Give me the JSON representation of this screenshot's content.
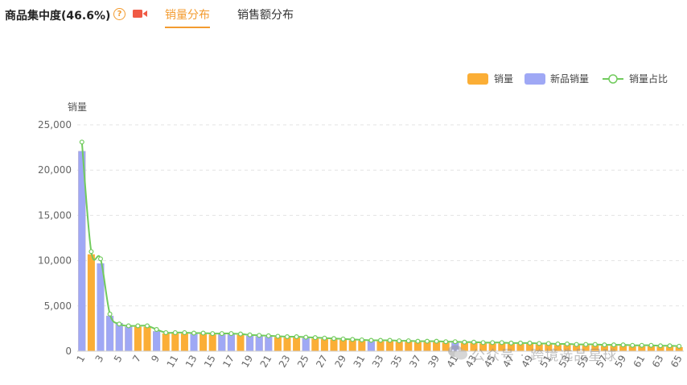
{
  "header": {
    "title": "商品集中度(46.6%)",
    "tabs": [
      {
        "label": "销量分布",
        "active": true
      },
      {
        "label": "销售额分布",
        "active": false
      }
    ]
  },
  "watermark": {
    "text": "公众号 · 跨境选品星球"
  },
  "colors": {
    "sales": "#fbae36",
    "new_sales": "#9fa8f5",
    "share_line": "#71cb5d",
    "accent": "#f39b2f"
  },
  "chart_data": {
    "type": "bar",
    "ylabel": "销量",
    "ylim": [
      0,
      25000
    ],
    "yticks": [
      0,
      5000,
      10000,
      15000,
      20000,
      25000
    ],
    "ytick_labels": [
      "0",
      "5,000",
      "10,000",
      "15,000",
      "20,000",
      "25,000"
    ],
    "grid": true,
    "legend_position": "top-right",
    "legend": [
      "销量",
      "新品销量",
      "销量占比"
    ],
    "categories": [
      "1",
      "2",
      "3",
      "4",
      "5",
      "6",
      "7",
      "8",
      "9",
      "10",
      "11",
      "12",
      "13",
      "14",
      "15",
      "16",
      "17",
      "18",
      "19",
      "20",
      "21",
      "22",
      "23",
      "24",
      "25",
      "26",
      "27",
      "28",
      "29",
      "30",
      "31",
      "32",
      "33",
      "34",
      "35",
      "36",
      "37",
      "38",
      "39",
      "40",
      "41",
      "42",
      "43",
      "44",
      "45",
      "46",
      "47",
      "48",
      "49",
      "50",
      "51",
      "52",
      "53",
      "54",
      "55",
      "56",
      "57",
      "58",
      "59",
      "60",
      "61",
      "62",
      "63",
      "64",
      "65"
    ],
    "xtick_labels": [
      "1",
      "3",
      "5",
      "7",
      "9",
      "11",
      "13",
      "15",
      "17",
      "19",
      "21",
      "23",
      "25",
      "27",
      "29",
      "31",
      "33",
      "35",
      "37",
      "39",
      "41",
      "43",
      "45",
      "47",
      "49",
      "51",
      "53",
      "55",
      "57",
      "59",
      "61",
      "63",
      "65"
    ],
    "series": [
      {
        "name": "销量",
        "values": [
          22100,
          10700,
          9700,
          3900,
          3100,
          2700,
          2700,
          2700,
          2200,
          1950,
          1950,
          1950,
          1900,
          1900,
          1850,
          1850,
          1850,
          1800,
          1700,
          1650,
          1600,
          1550,
          1500,
          1500,
          1450,
          1400,
          1350,
          1300,
          1250,
          1200,
          1150,
          1100,
          1100,
          1100,
          1050,
          1050,
          1000,
          1000,
          1000,
          950,
          950,
          900,
          900,
          850,
          850,
          850,
          800,
          800,
          800,
          750,
          750,
          700,
          700,
          650,
          650,
          650,
          600,
          600,
          600,
          550,
          550,
          550,
          500,
          500,
          450
        ]
      },
      {
        "name": "新品销量",
        "values": [
          22100,
          0,
          9700,
          3900,
          3100,
          2700,
          0,
          0,
          2200,
          0,
          0,
          0,
          1900,
          0,
          0,
          1850,
          1850,
          0,
          1700,
          1650,
          1600,
          0,
          0,
          0,
          1450,
          0,
          0,
          0,
          0,
          0,
          0,
          1100,
          0,
          0,
          0,
          0,
          0,
          0,
          0,
          0,
          950,
          0,
          0,
          0,
          0,
          0,
          0,
          0,
          0,
          0,
          0,
          0,
          0,
          0,
          0,
          0,
          0,
          0,
          0,
          0,
          0,
          0,
          0,
          0,
          0
        ]
      },
      {
        "name": "销量占比",
        "values": [
          23100,
          11000,
          10200,
          4100,
          3000,
          2800,
          2800,
          2800,
          2400,
          2050,
          2050,
          2050,
          2000,
          2000,
          1950,
          1950,
          1950,
          1900,
          1800,
          1750,
          1700,
          1650,
          1600,
          1600,
          1550,
          1500,
          1450,
          1400,
          1350,
          1300,
          1250,
          1200,
          1200,
          1200,
          1150,
          1150,
          1100,
          1100,
          1100,
          1050,
          1050,
          1000,
          1000,
          950,
          950,
          950,
          900,
          900,
          900,
          850,
          850,
          800,
          800,
          750,
          750,
          750,
          700,
          700,
          700,
          650,
          650,
          650,
          600,
          600,
          550
        ]
      }
    ]
  }
}
